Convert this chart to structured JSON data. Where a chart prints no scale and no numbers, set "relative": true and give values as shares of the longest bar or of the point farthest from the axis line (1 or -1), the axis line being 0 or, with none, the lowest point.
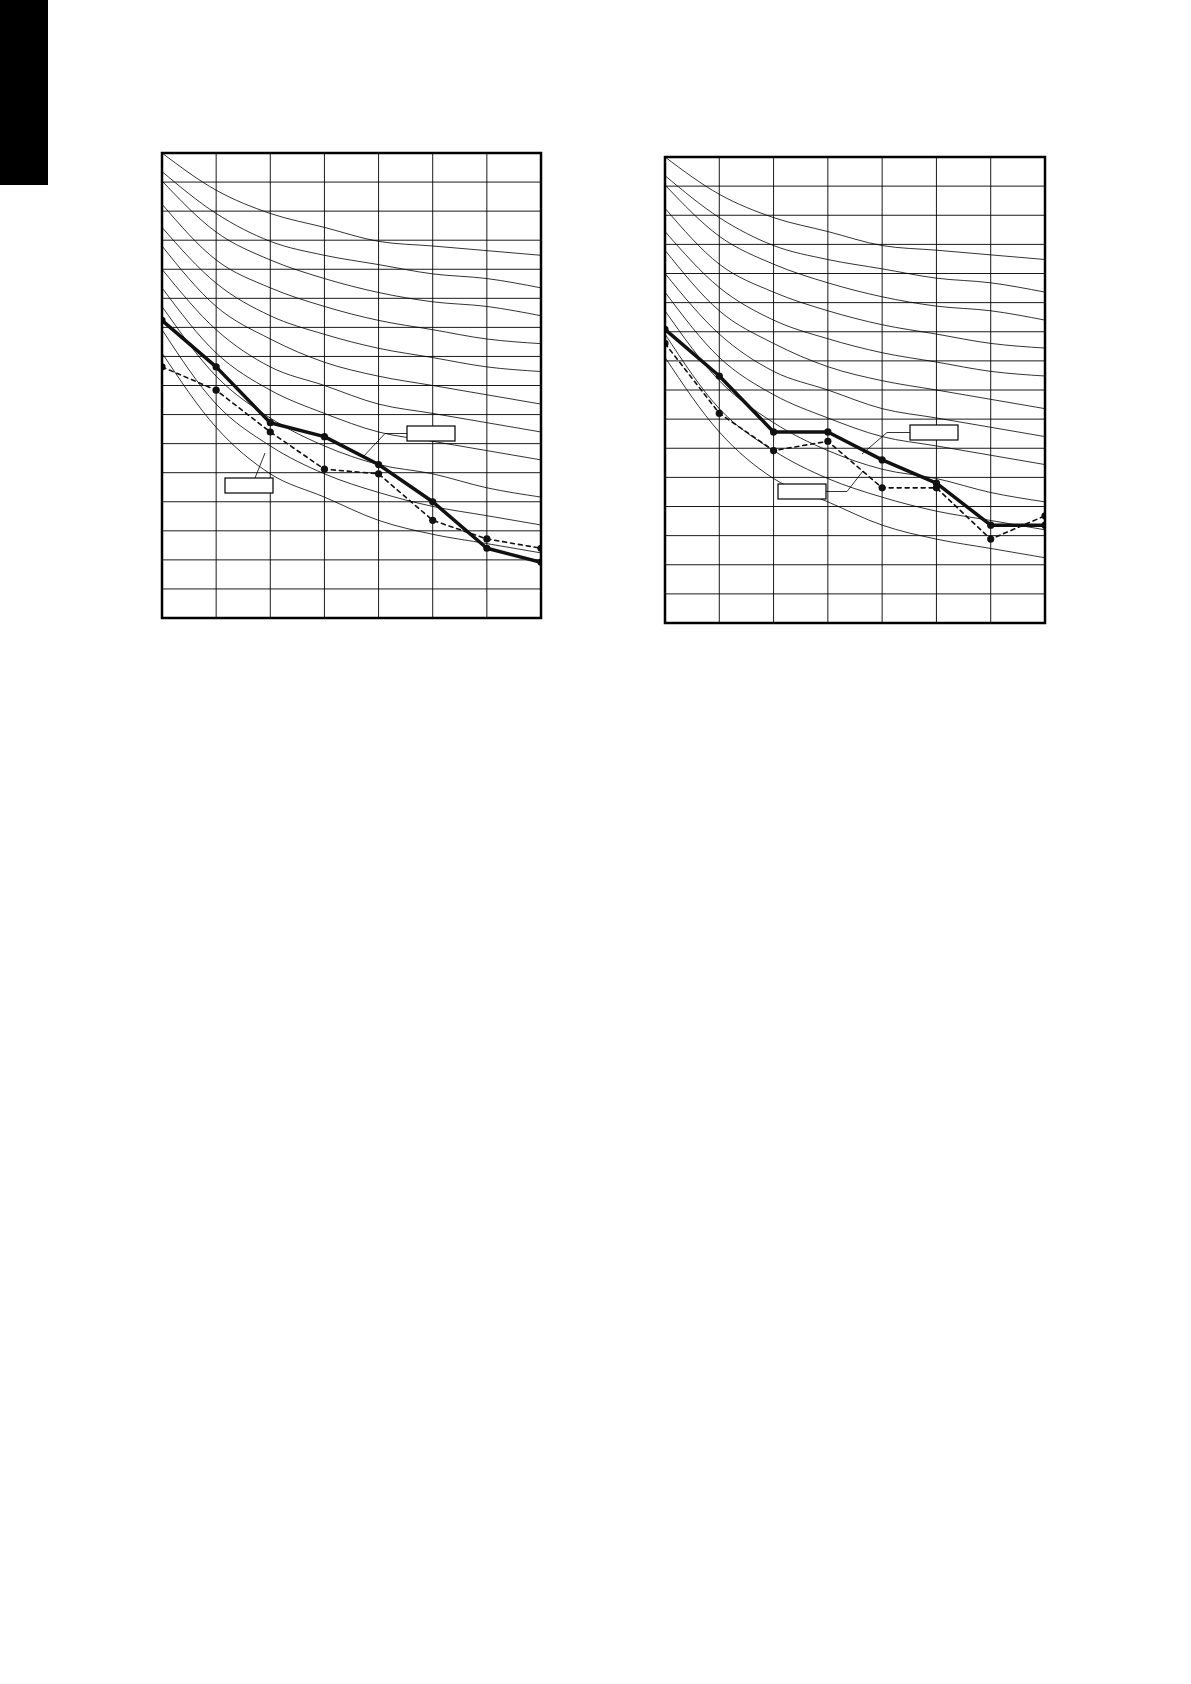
{
  "chart_data": [
    {
      "type": "line",
      "relative": true,
      "grid": true,
      "categories": [
        null,
        null,
        null,
        null,
        null,
        null,
        null,
        null
      ],
      "series": [
        {
          "color": "#000000",
          "marker": "none",
          "line_style": "solid",
          "values": [
            1,
            0.92,
            0.87,
            0.84,
            0.81,
            0.8,
            0.79,
            0.78
          ]
        },
        {
          "color": "#000000",
          "marker": "none",
          "line_style": "solid",
          "values": [
            0.96,
            0.87,
            0.81,
            0.78,
            0.76,
            0.74,
            0.73,
            0.71
          ]
        },
        {
          "color": "#000000",
          "marker": "none",
          "line_style": "solid",
          "values": [
            0.94,
            0.83,
            0.77,
            0.73,
            0.7,
            0.68,
            0.67,
            0.65
          ]
        },
        {
          "color": "#000000",
          "marker": "none",
          "line_style": "solid",
          "values": [
            0.89,
            0.77,
            0.71,
            0.67,
            0.64,
            0.62,
            0.6,
            0.59
          ]
        },
        {
          "color": "#000000",
          "marker": "none",
          "line_style": "solid",
          "values": [
            0.84,
            0.72,
            0.65,
            0.61,
            0.58,
            0.56,
            0.54,
            0.53
          ]
        },
        {
          "color": "#000000",
          "marker": "none",
          "line_style": "solid",
          "values": [
            0.8,
            0.67,
            0.6,
            0.55,
            0.52,
            0.5,
            0.48,
            0.46
          ]
        },
        {
          "color": "#000000",
          "marker": "none",
          "line_style": "solid",
          "values": [
            0.75,
            0.62,
            0.54,
            0.5,
            0.46,
            0.44,
            0.42,
            0.4
          ]
        },
        {
          "color": "#000000",
          "marker": "none",
          "line_style": "solid",
          "values": [
            0.71,
            0.57,
            0.49,
            0.44,
            0.4,
            0.38,
            0.36,
            0.34
          ]
        },
        {
          "color": "#000000",
          "marker": "none",
          "line_style": "solid",
          "values": [
            0.67,
            0.52,
            0.43,
            0.37,
            0.33,
            0.31,
            0.28,
            0.26
          ]
        },
        {
          "color": "#000000",
          "marker": "none",
          "line_style": "solid",
          "values": [
            0.62,
            0.46,
            0.37,
            0.31,
            0.27,
            0.24,
            0.22,
            0.2
          ]
        },
        {
          "color": "#000000",
          "marker": "none",
          "line_style": "solid",
          "values": [
            0.57,
            0.41,
            0.31,
            0.26,
            0.21,
            0.18,
            0.16,
            0.14
          ]
        },
        {
          "color": "#111111",
          "marker": "circle",
          "line_style": "solid",
          "values": [
            0.64,
            0.54,
            0.42,
            0.39,
            0.33,
            0.25,
            0.15,
            0.12
          ]
        },
        {
          "color": "#111111",
          "marker": "circle",
          "line_style": "dashed",
          "values": [
            0.54,
            0.49,
            0.4,
            0.32,
            0.31,
            0.21,
            0.17,
            0.15
          ]
        }
      ]
    },
    {
      "type": "line",
      "relative": true,
      "grid": true,
      "categories": [
        null,
        null,
        null,
        null,
        null,
        null,
        null,
        null
      ],
      "series": [
        {
          "color": "#000000",
          "marker": "none",
          "line_style": "solid",
          "values": [
            1,
            0.92,
            0.87,
            0.84,
            0.81,
            0.8,
            0.79,
            0.78
          ]
        },
        {
          "color": "#000000",
          "marker": "none",
          "line_style": "solid",
          "values": [
            0.96,
            0.87,
            0.81,
            0.78,
            0.76,
            0.74,
            0.73,
            0.71
          ]
        },
        {
          "color": "#000000",
          "marker": "none",
          "line_style": "solid",
          "values": [
            0.94,
            0.83,
            0.77,
            0.73,
            0.7,
            0.68,
            0.67,
            0.65
          ]
        },
        {
          "color": "#000000",
          "marker": "none",
          "line_style": "solid",
          "values": [
            0.89,
            0.77,
            0.71,
            0.67,
            0.64,
            0.62,
            0.6,
            0.59
          ]
        },
        {
          "color": "#000000",
          "marker": "none",
          "line_style": "solid",
          "values": [
            0.84,
            0.72,
            0.65,
            0.61,
            0.58,
            0.56,
            0.54,
            0.53
          ]
        },
        {
          "color": "#000000",
          "marker": "none",
          "line_style": "solid",
          "values": [
            0.8,
            0.67,
            0.6,
            0.55,
            0.52,
            0.5,
            0.48,
            0.46
          ]
        },
        {
          "color": "#000000",
          "marker": "none",
          "line_style": "solid",
          "values": [
            0.75,
            0.62,
            0.54,
            0.5,
            0.46,
            0.44,
            0.42,
            0.4
          ]
        },
        {
          "color": "#000000",
          "marker": "none",
          "line_style": "solid",
          "values": [
            0.71,
            0.57,
            0.49,
            0.44,
            0.4,
            0.38,
            0.36,
            0.34
          ]
        },
        {
          "color": "#000000",
          "marker": "none",
          "line_style": "solid",
          "values": [
            0.67,
            0.52,
            0.43,
            0.37,
            0.33,
            0.31,
            0.28,
            0.26
          ]
        },
        {
          "color": "#000000",
          "marker": "none",
          "line_style": "solid",
          "values": [
            0.62,
            0.46,
            0.37,
            0.31,
            0.27,
            0.24,
            0.22,
            0.2
          ]
        },
        {
          "color": "#000000",
          "marker": "none",
          "line_style": "solid",
          "values": [
            0.57,
            0.41,
            0.31,
            0.26,
            0.21,
            0.18,
            0.16,
            0.14
          ]
        },
        {
          "color": "#111111",
          "marker": "circle",
          "line_style": "solid",
          "values": [
            0.63,
            0.53,
            0.41,
            0.41,
            0.35,
            0.3,
            0.21,
            0.21
          ]
        },
        {
          "color": "#111111",
          "marker": "circle",
          "line_style": "dashed",
          "values": [
            0.6,
            0.45,
            0.37,
            0.39,
            0.29,
            0.29,
            0.18,
            0.23
          ]
        }
      ]
    }
  ]
}
